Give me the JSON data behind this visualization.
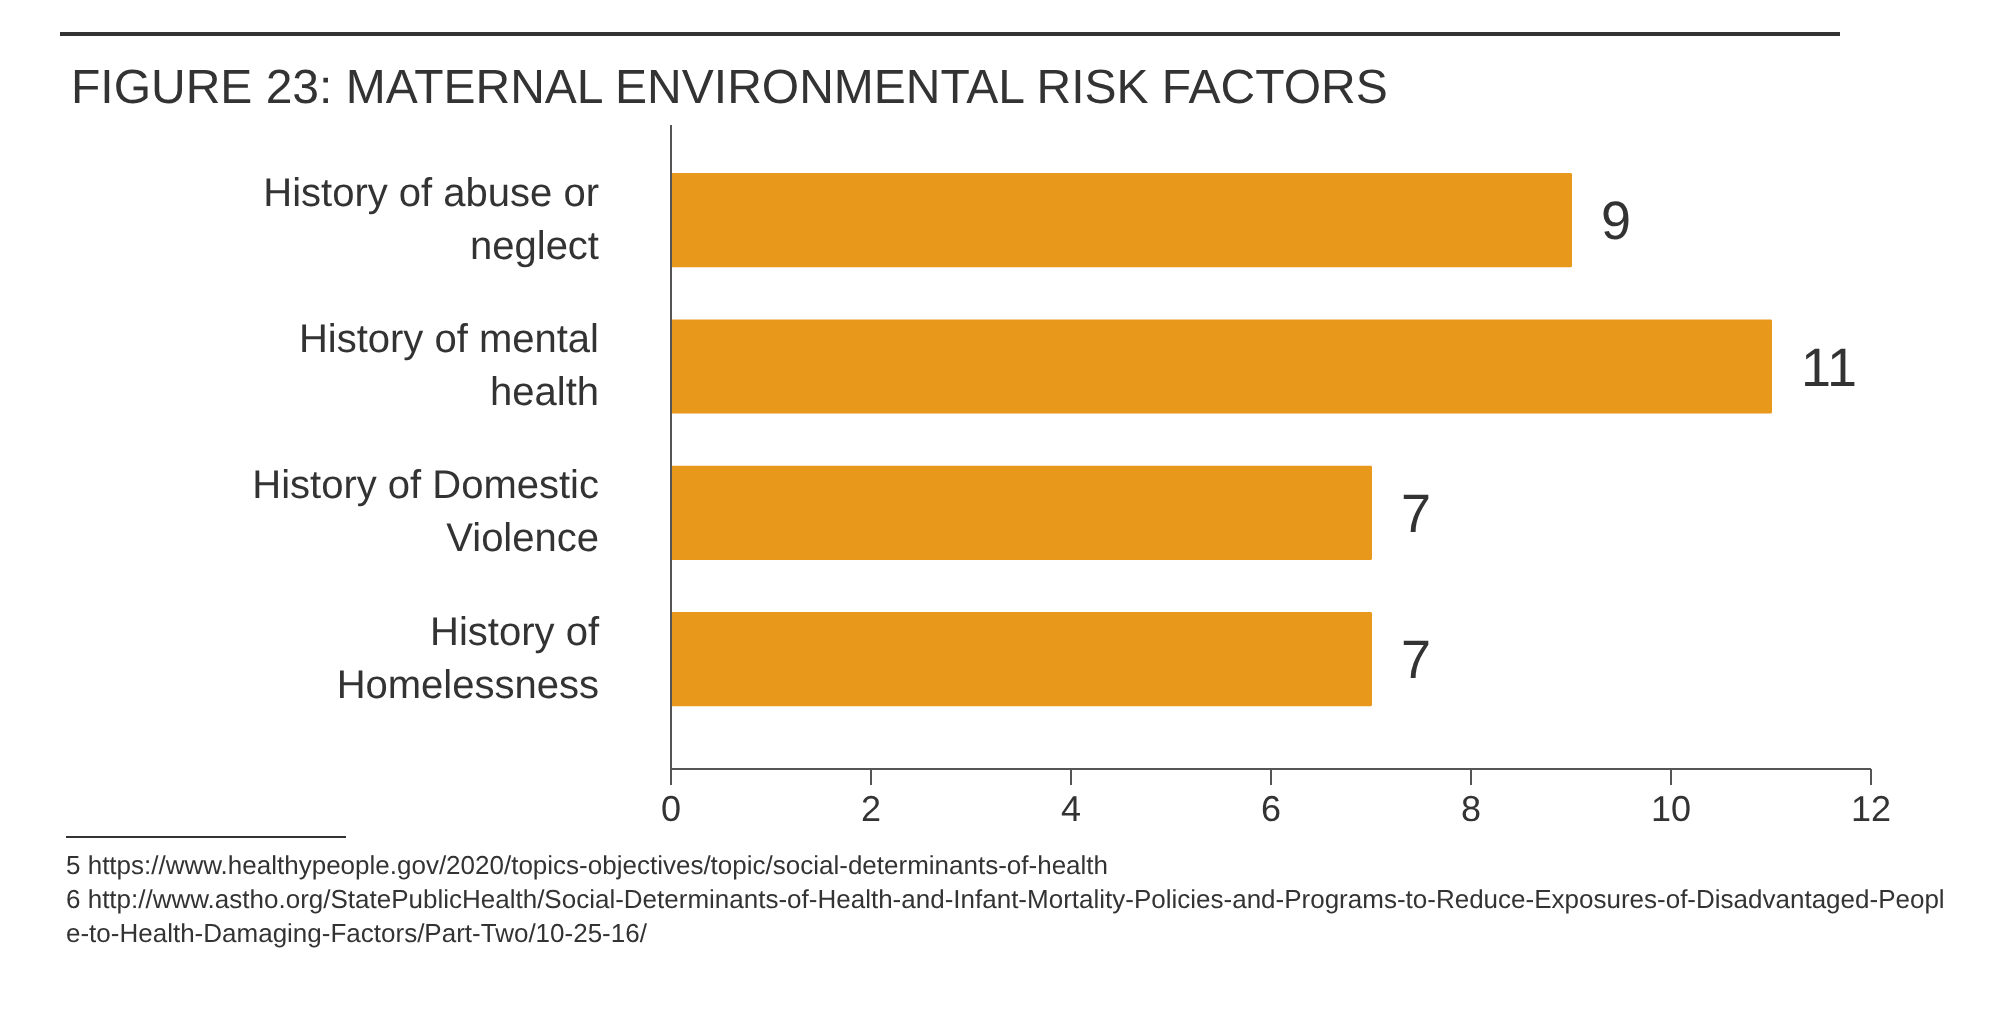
{
  "chart_data": {
    "type": "bar",
    "orientation": "horizontal",
    "title": "FIGURE 23: MATERNAL ENVIRONMENTAL RISK FACTORS",
    "categories": [
      "History of abuse or neglect",
      "History of mental health",
      "History of Domestic Violence",
      "History of Homelessness"
    ],
    "values": [
      9,
      11,
      7,
      7
    ],
    "color": "#e8991c",
    "xlim": [
      0,
      12
    ],
    "xticks": [
      0,
      2,
      4,
      6,
      8,
      10,
      12
    ],
    "grid": false,
    "data_labels": true,
    "annotations": [
      "5     https://www.healthypeople.gov/2020/topics-objectives/topic/social-determinants-of-health",
      "6     http://www.astho.org/StatePublicHealth/Social-Determinants-of-Health-and-Infant-Mortality-Policies-and-Programs-to-Reduce-Exposures-of-Disadvantaged-People-to-Health-Damaging-Factors/Part-Two/10-25-16/"
    ]
  }
}
